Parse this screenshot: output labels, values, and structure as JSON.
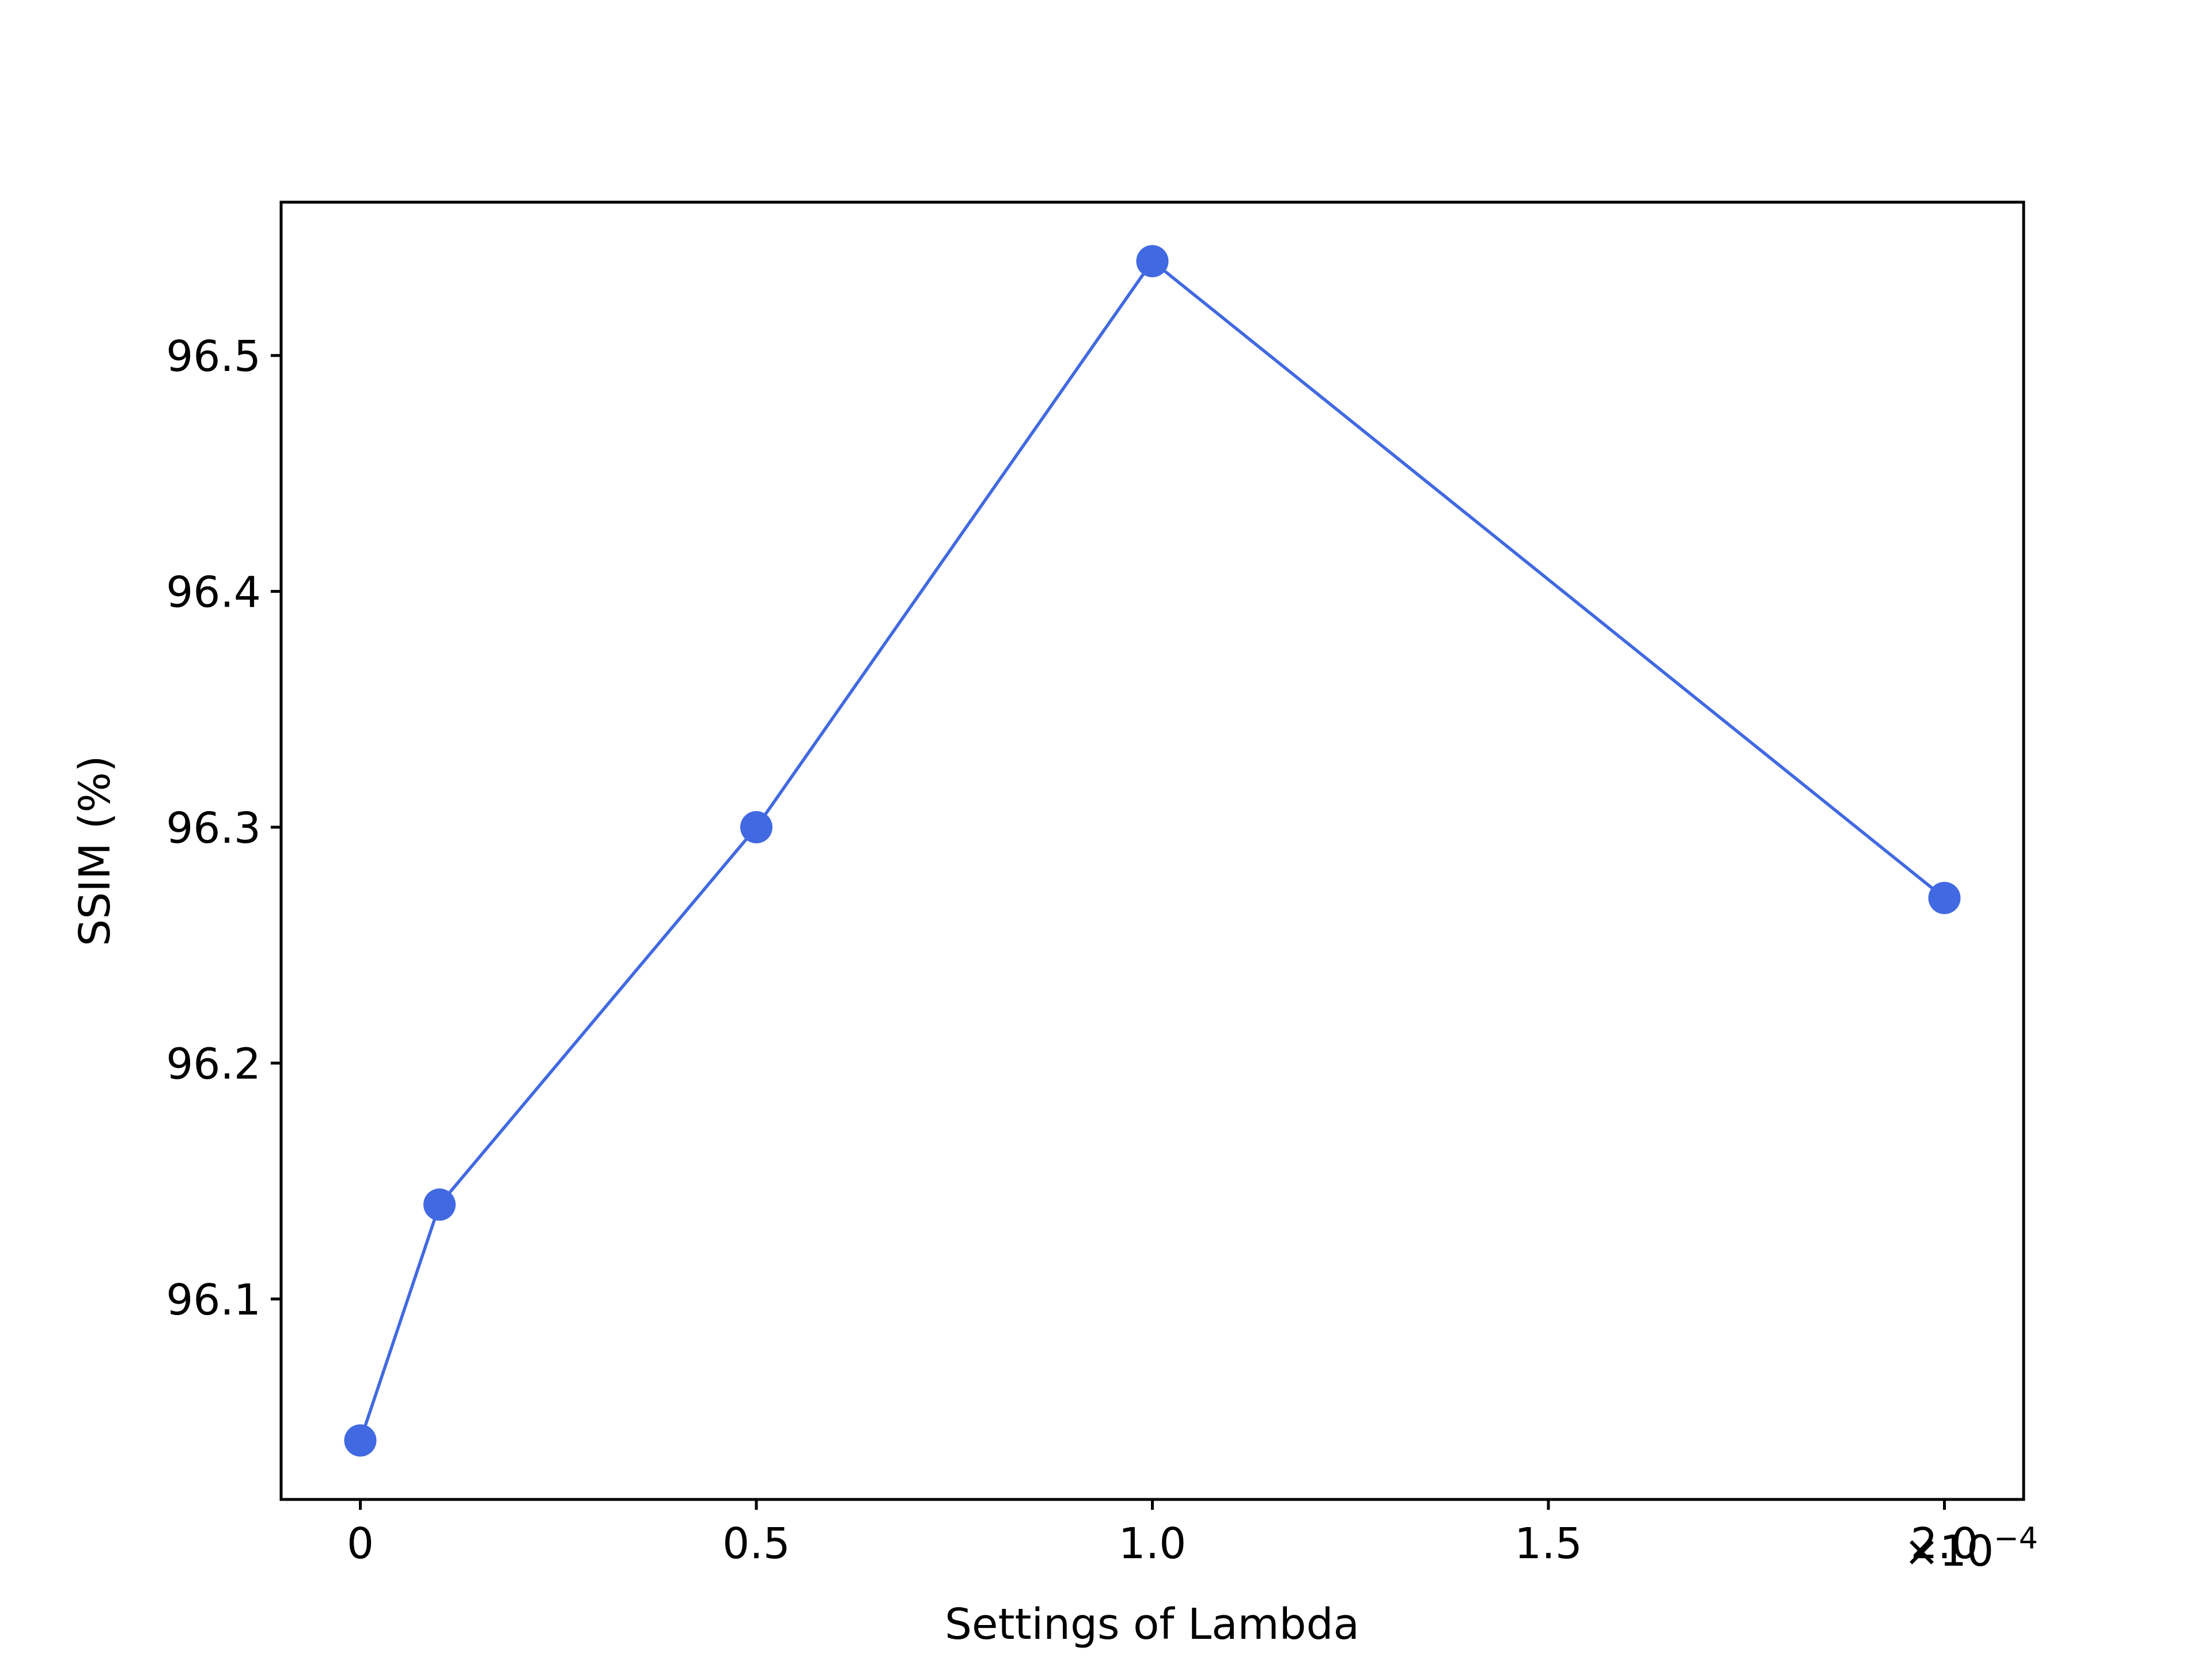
{
  "chart_data": {
    "type": "line",
    "title": "",
    "xlabel": "Settings of Lambda",
    "ylabel": "SSIM (%)",
    "x_tick_labels": [
      "0",
      "0.5",
      "1.0",
      "1.5",
      "2.0"
    ],
    "x_tick_values": [
      0,
      0.5,
      1.0,
      1.5,
      2.0
    ],
    "x_offset_label": {
      "base": "×10",
      "exponent": "−4"
    },
    "y_tick_labels": [
      "96.1",
      "96.2",
      "96.3",
      "96.4",
      "96.5"
    ],
    "y_tick_values": [
      96.1,
      96.2,
      96.3,
      96.4,
      96.5
    ],
    "xlim": [
      -0.1,
      2.1
    ],
    "ylim": [
      96.015,
      96.565
    ],
    "grid": false,
    "series": [
      {
        "x": [
          0,
          0.1,
          0.5,
          1.0,
          2.0
        ],
        "values": [
          96.04,
          96.14,
          96.3,
          96.54,
          96.27
        ],
        "color": "#4169e1",
        "marker": "circle"
      }
    ]
  }
}
